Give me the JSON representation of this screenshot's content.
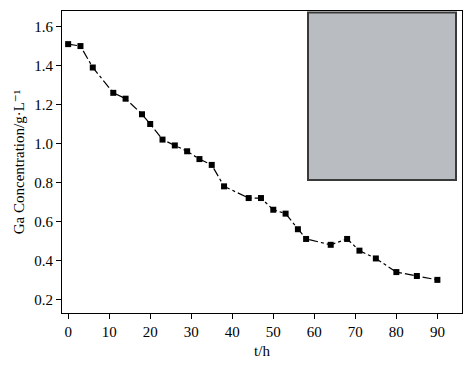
{
  "chart_data": {
    "type": "line",
    "x": [
      0,
      3,
      6,
      11,
      14,
      18,
      20,
      23,
      26,
      29,
      32,
      35,
      38,
      44,
      47,
      50,
      53,
      56,
      58,
      64,
      68,
      71,
      75,
      80,
      85,
      90
    ],
    "values": [
      1.51,
      1.5,
      1.39,
      1.26,
      1.23,
      1.15,
      1.1,
      1.02,
      0.99,
      0.96,
      0.92,
      0.89,
      0.78,
      0.72,
      0.72,
      0.66,
      0.64,
      0.56,
      0.51,
      0.48,
      0.51,
      0.45,
      0.41,
      0.34,
      0.32,
      0.3
    ],
    "x_label": "t/h",
    "y_label": "Ga Concentration/g·L⁻¹",
    "xlim": [
      -1.5,
      96
    ],
    "ylim": [
      0.13,
      1.68
    ],
    "xticks": [
      0,
      10,
      20,
      30,
      40,
      50,
      60,
      70,
      80,
      90
    ],
    "yticks": [
      0.2,
      0.4,
      0.6,
      0.8,
      {
        "value": 1,
        "label": "1.0"
      },
      1.2,
      1.4,
      1.6
    ],
    "color": "#000000",
    "marker": "square",
    "line_style": "dashdot",
    "grid": false
  }
}
